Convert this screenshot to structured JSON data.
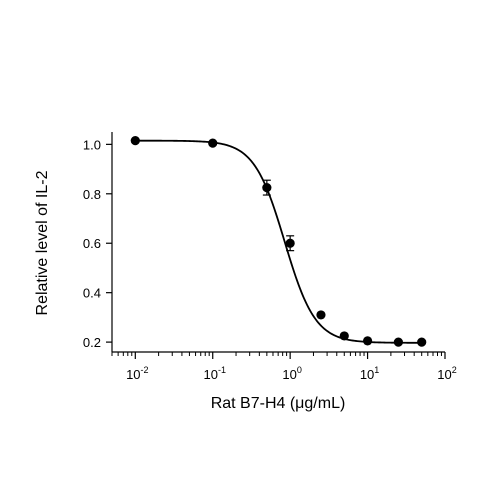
{
  "chart_data": {
    "type": "scatter",
    "title": "",
    "xlabel": "Rat B7-H4 (μg/mL)",
    "ylabel": "Relative level of IL-2",
    "x_scale": "log10",
    "xlim": [
      0.005,
      100
    ],
    "ylim": [
      0.16,
      1.05
    ],
    "x_ticks": [
      {
        "value": 0.01,
        "base": "10",
        "exp": "-2"
      },
      {
        "value": 0.1,
        "base": "10",
        "exp": "-1"
      },
      {
        "value": 1,
        "base": "10",
        "exp": "0"
      },
      {
        "value": 10,
        "base": "10",
        "exp": "1"
      },
      {
        "value": 100,
        "base": "10",
        "exp": "2"
      }
    ],
    "y_ticks": [
      "0.2",
      "0.4",
      "0.6",
      "0.8",
      "1.0"
    ],
    "grid": false,
    "series": [
      {
        "points": [
          {
            "x": 0.01,
            "y": 1.015,
            "err": 0.0
          },
          {
            "x": 0.1,
            "y": 1.005,
            "err": 0.0
          },
          {
            "x": 0.5,
            "y": 0.825,
            "err": 0.03
          },
          {
            "x": 1,
            "y": 0.6,
            "err": 0.03
          },
          {
            "x": 2.5,
            "y": 0.31,
            "err": 0.0
          },
          {
            "x": 5,
            "y": 0.225,
            "err": 0.0
          },
          {
            "x": 10,
            "y": 0.205,
            "err": 0.0
          },
          {
            "x": 25,
            "y": 0.2,
            "err": 0.0
          },
          {
            "x": 50,
            "y": 0.2,
            "err": 0.0
          }
        ],
        "fit": {
          "model": "4PL",
          "top": 1.015,
          "bottom": 0.197,
          "ec50": 0.85,
          "hill": 2.2
        }
      }
    ]
  },
  "colors": {
    "marks": "#000000",
    "background": "#ffffff"
  }
}
